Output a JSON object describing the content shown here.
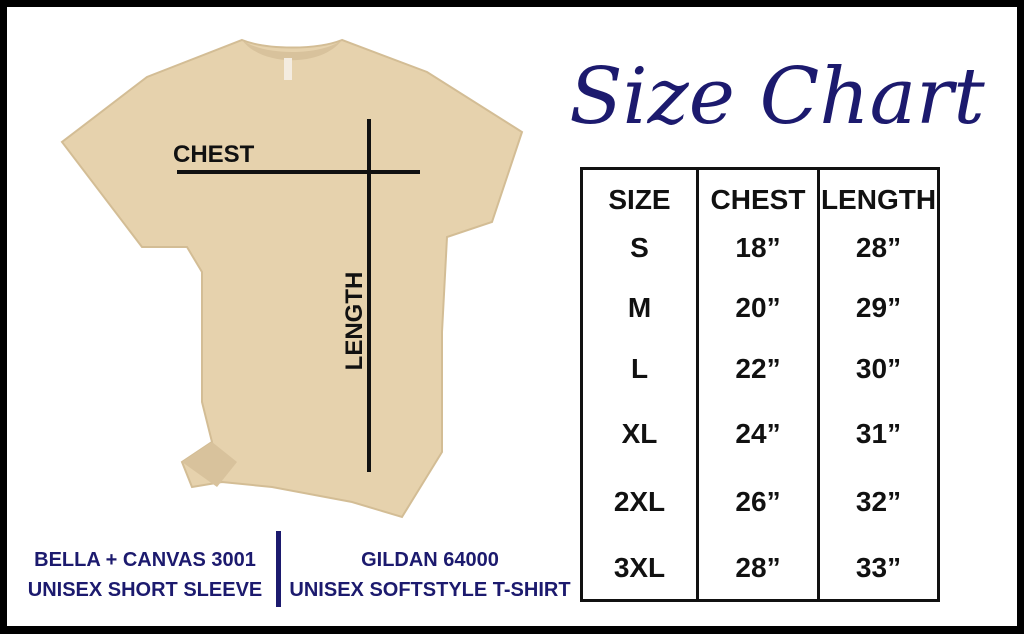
{
  "title": "Size Chart",
  "colors": {
    "accent": "#1c1a6e",
    "shirt": "#e6d2ad",
    "frame": "#000000"
  },
  "shirt": {
    "chest_label": "CHEST",
    "length_label": "LENGTH"
  },
  "table": {
    "headers": [
      "SIZE",
      "CHEST",
      "LENGTH"
    ],
    "rows": [
      [
        "S",
        "18”",
        "28”"
      ],
      [
        "M",
        "20”",
        "29”"
      ],
      [
        "L",
        "22”",
        "30”"
      ],
      [
        "XL",
        "24”",
        "31”"
      ],
      [
        "2XL",
        "26”",
        "32”"
      ],
      [
        "3XL",
        "28”",
        "33”"
      ]
    ]
  },
  "brands": [
    {
      "line1": "BELLA + CANVAS 3001",
      "line2": "UNISEX SHORT SLEEVE"
    },
    {
      "line1": "GILDAN 64000",
      "line2": "UNISEX SOFTSTYLE T-SHIRT"
    }
  ]
}
